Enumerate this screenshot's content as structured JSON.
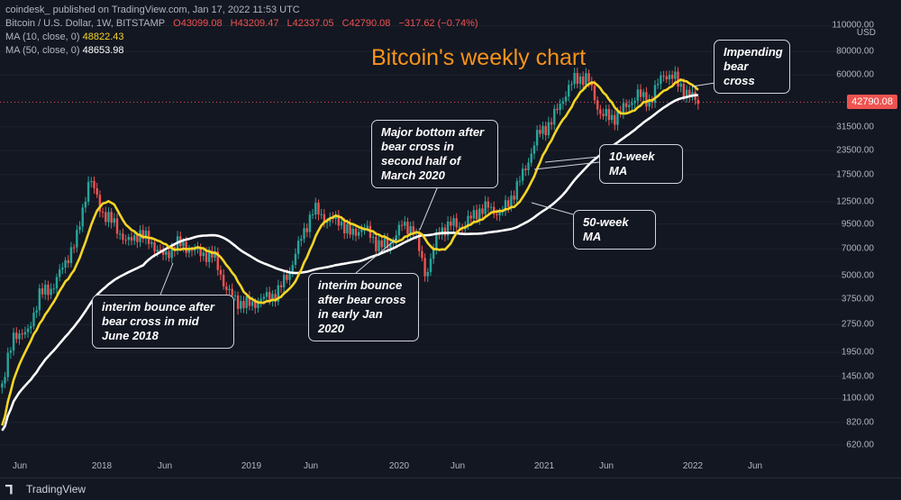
{
  "header": {
    "published": "coindesk_ published on TradingView.com, Jan 17, 2022 11:53 UTC",
    "symbol": "Bitcoin / U.S. Dollar, 1W, BITSTAMP",
    "open": "O43099.08",
    "high": "H43209.47",
    "low": "L42337.05",
    "close": "C42790.08",
    "change": "−317.62 (−0.74%)",
    "ma10_label": "MA (10, close, 0)",
    "ma10_value": "48822.43",
    "ma50_label": "MA (50, close, 0)",
    "ma50_value": "48653.98"
  },
  "title": "Bitcoin's weekly chart",
  "annotations": {
    "impending": "Impending bear cross",
    "major_bottom": "Major bottom after bear cross in second half of March 2020",
    "ma10": "10-week MA",
    "ma50": "50-week MA",
    "interim_2018": "interim bounce after bear cross in mid June 2018",
    "interim_2020": "interim bounce after bear cross in early Jan 2020"
  },
  "price_tag": "42790.08",
  "currency": "USD",
  "footer": {
    "brand": "TradingView"
  },
  "colors": {
    "up": "#26a69a",
    "down": "#ef5350",
    "ma10": "#f5d525",
    "ma50": "#ffffff",
    "title": "#f7931a",
    "background": "#131722"
  },
  "chart_data": {
    "type": "candlestick",
    "title": "Bitcoin's weekly chart",
    "y_scale": "log",
    "y_ticks": [
      "110000.00",
      "80000.00",
      "60000.00",
      "42790.08",
      "31500.00",
      "23500.00",
      "17500.00",
      "12500.00",
      "9500.00",
      "7000.00",
      "5000.00",
      "3750.00",
      "2750.00",
      "1950.00",
      "1450.00",
      "1100.00",
      "820.00",
      "620.00"
    ],
    "x_ticks": [
      "Jun",
      "2018",
      "Jun",
      "2019",
      "Jun",
      "2020",
      "Jun",
      "2021",
      "Jun",
      "2022",
      "Jun"
    ],
    "series": [
      {
        "name": "MA (10, close, 0)",
        "last": 48822.43
      },
      {
        "name": "MA (50, close, 0)",
        "last": 48653.98
      }
    ],
    "close_price_line": 42790.08,
    "price_points": [
      [
        "2017-05",
        1300
      ],
      [
        "2017-06",
        2500
      ],
      [
        "2017-07",
        2400
      ],
      [
        "2017-08",
        4000
      ],
      [
        "2017-09",
        4300
      ],
      [
        "2017-10",
        5800
      ],
      [
        "2017-11",
        8000
      ],
      [
        "2017-12",
        17000
      ],
      [
        "2018-01",
        11000
      ],
      [
        "2018-02",
        9500
      ],
      [
        "2018-03",
        7500
      ],
      [
        "2018-04",
        8500
      ],
      [
        "2018-05",
        7500
      ],
      [
        "2018-06",
        6300
      ],
      [
        "2018-07",
        7500
      ],
      [
        "2018-08",
        7000
      ],
      [
        "2018-09",
        6600
      ],
      [
        "2018-10",
        6400
      ],
      [
        "2018-11",
        4200
      ],
      [
        "2018-12",
        3600
      ],
      [
        "2019-01",
        3500
      ],
      [
        "2019-02",
        3800
      ],
      [
        "2019-03",
        4000
      ],
      [
        "2019-04",
        5200
      ],
      [
        "2019-05",
        8000
      ],
      [
        "2019-06",
        11500
      ],
      [
        "2019-07",
        10000
      ],
      [
        "2019-08",
        10000
      ],
      [
        "2019-09",
        8300
      ],
      [
        "2019-10",
        9200
      ],
      [
        "2019-11",
        7500
      ],
      [
        "2019-12",
        7200
      ],
      [
        "2020-01",
        9300
      ],
      [
        "2020-02",
        9000
      ],
      [
        "2020-03",
        5000
      ],
      [
        "2020-04",
        8600
      ],
      [
        "2020-05",
        9500
      ],
      [
        "2020-06",
        9200
      ],
      [
        "2020-07",
        11000
      ],
      [
        "2020-08",
        11700
      ],
      [
        "2020-09",
        10700
      ],
      [
        "2020-10",
        13700
      ],
      [
        "2020-11",
        19000
      ],
      [
        "2020-12",
        29000
      ],
      [
        "2021-01",
        33000
      ],
      [
        "2021-02",
        45000
      ],
      [
        "2021-03",
        58000
      ],
      [
        "2021-04",
        57000
      ],
      [
        "2021-05",
        37000
      ],
      [
        "2021-06",
        35000
      ],
      [
        "2021-07",
        40000
      ],
      [
        "2021-08",
        47000
      ],
      [
        "2021-09",
        43000
      ],
      [
        "2021-10",
        61000
      ],
      [
        "2021-11",
        57000
      ],
      [
        "2021-12",
        47000
      ],
      [
        "2022-01",
        42790
      ]
    ]
  }
}
